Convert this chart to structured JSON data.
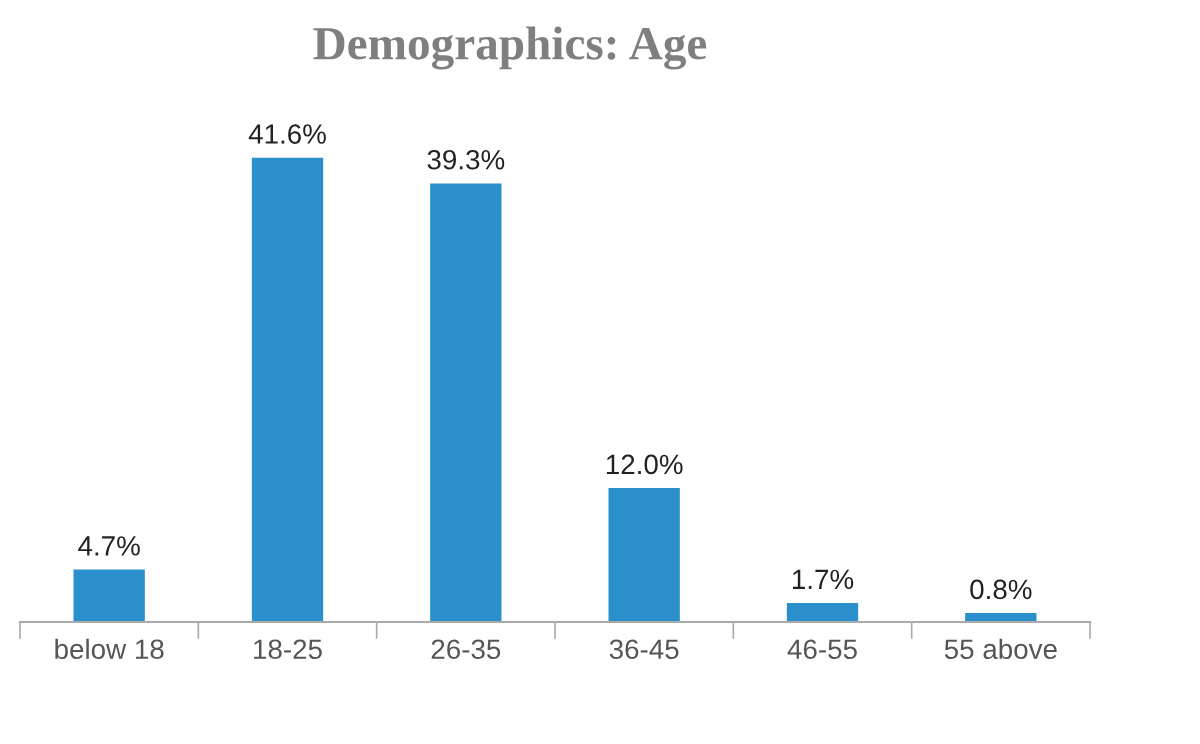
{
  "chart_data": {
    "type": "bar",
    "title": "Demographics: Age",
    "categories": [
      "below 18",
      "18-25",
      "26-35",
      "36-45",
      "46-55",
      "55 above"
    ],
    "values": [
      4.7,
      41.6,
      39.3,
      12.0,
      1.7,
      0.8
    ],
    "value_labels": [
      "4.7%",
      "41.6%",
      "39.3%",
      "12.0%",
      "1.7%",
      "0.8%"
    ],
    "color": "#2a8fcb",
    "grid": false,
    "legend": false
  }
}
